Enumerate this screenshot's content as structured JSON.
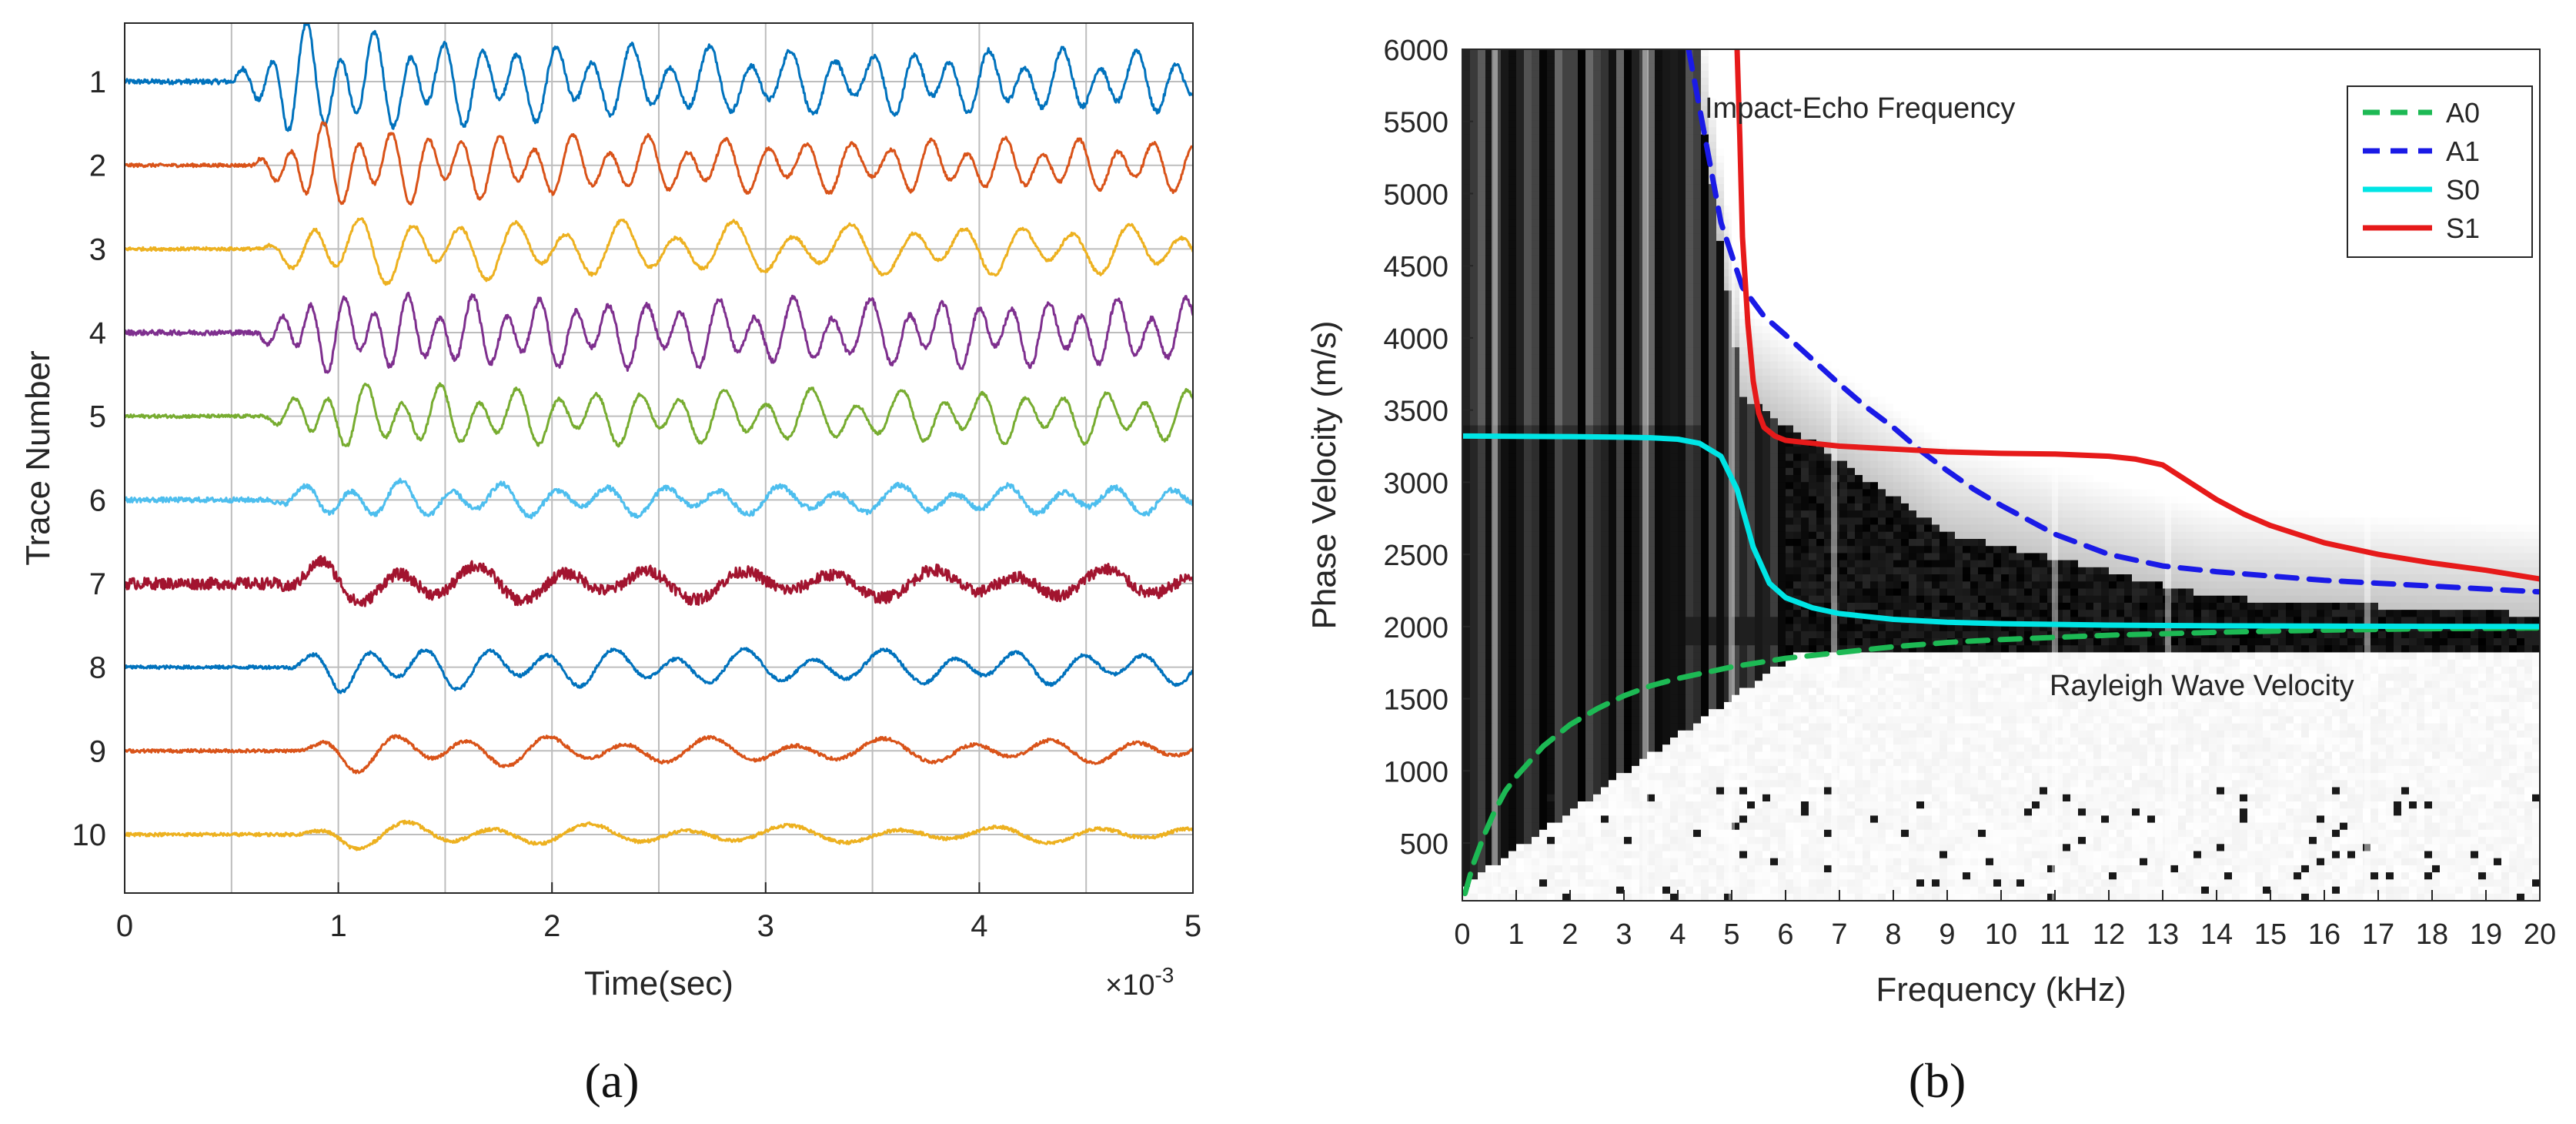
{
  "figure": {
    "panel_a_caption": "(a)",
    "panel_b_caption": "(b)"
  },
  "colors": {
    "trace_colors": [
      "#0072BD",
      "#D95319",
      "#EDB120",
      "#7E2F8E",
      "#77AC30",
      "#4DBEEE",
      "#A2142F",
      "#0072BD",
      "#D95319",
      "#EDB120"
    ],
    "A0": "#1db954",
    "A1": "#1a1ae6",
    "S0": "#00e5e5",
    "S1": "#e61a1a"
  },
  "chart_data": [
    {
      "type": "line",
      "title": "",
      "xlabel": "Time(sec)",
      "ylabel": "Trace Number",
      "x_exponent_label": "×10",
      "x_exponent_power": "-3",
      "xlim": [
        0,
        5
      ],
      "ylim": [
        10.7,
        0.3
      ],
      "xticks": [
        0,
        1,
        2,
        3,
        4,
        5
      ],
      "xtick_labels": [
        "0",
        "1",
        "2",
        "3",
        "4",
        "5"
      ],
      "yticks": [
        1,
        2,
        3,
        4,
        5,
        6,
        7,
        8,
        9,
        10
      ],
      "ytick_labels": [
        "1",
        "2",
        "3",
        "4",
        "5",
        "6",
        "7",
        "8",
        "9",
        "10"
      ],
      "grid": true,
      "vertical_gridlines": [
        0.5,
        1.0,
        1.5,
        2.0,
        2.5,
        3.0,
        3.5,
        4.0,
        4.5
      ],
      "series": [
        {
          "name": "Trace 1",
          "baseline": 1,
          "onset": 0.5,
          "amp": 0.75,
          "freq": 6.5,
          "noise": 0.03,
          "decay": 0.45
        },
        {
          "name": "Trace 2",
          "baseline": 2,
          "onset": 0.6,
          "amp": 0.55,
          "freq": 6.5,
          "noise": 0.02,
          "decay": 0.5
        },
        {
          "name": "Trace 3",
          "baseline": 3,
          "onset": 0.65,
          "amp": 0.45,
          "freq": 4.5,
          "noise": 0.02,
          "decay": 0.6
        },
        {
          "name": "Trace 4",
          "baseline": 4,
          "onset": 0.6,
          "amp": 0.45,
          "freq": 7.0,
          "noise": 0.03,
          "decay": 0.8
        },
        {
          "name": "Trace 5",
          "baseline": 5,
          "onset": 0.65,
          "amp": 0.4,
          "freq": 6.0,
          "noise": 0.02,
          "decay": 0.7
        },
        {
          "name": "Trace 6",
          "baseline": 6,
          "onset": 0.68,
          "amp": 0.25,
          "freq": 4.5,
          "noise": 0.03,
          "decay": 0.6
        },
        {
          "name": "Trace 7",
          "baseline": 7,
          "onset": 0.7,
          "amp": 0.3,
          "freq": 2.8,
          "noise": 0.07,
          "decay": 0.5
        },
        {
          "name": "Trace 8",
          "baseline": 8,
          "onset": 0.75,
          "amp": 0.3,
          "freq": 3.8,
          "noise": 0.02,
          "decay": 0.6
        },
        {
          "name": "Trace 9",
          "baseline": 9,
          "onset": 0.8,
          "amp": 0.25,
          "freq": 3.0,
          "noise": 0.02,
          "decay": 0.5
        },
        {
          "name": "Trace 10",
          "baseline": 10,
          "onset": 0.8,
          "amp": 0.18,
          "freq": 2.5,
          "noise": 0.02,
          "decay": 0.5
        }
      ]
    },
    {
      "type": "heatmap",
      "title": "",
      "xlabel": "Frequency (kHz)",
      "ylabel": "Phase Velocity (m/s)",
      "xlim": [
        0,
        20
      ],
      "ylim": [
        100,
        6000
      ],
      "xticks": [
        0,
        1,
        2,
        3,
        4,
        5,
        6,
        7,
        8,
        9,
        10,
        11,
        12,
        13,
        14,
        15,
        16,
        17,
        18,
        19,
        20
      ],
      "yticks": [
        500,
        1000,
        1500,
        2000,
        2500,
        3000,
        3500,
        4000,
        4500,
        5000,
        5500,
        6000
      ],
      "ytick_labels": [
        "500",
        "1000",
        "1500",
        "2000",
        "2500",
        "3000",
        "3500",
        "4000",
        "4500",
        "5000",
        "5500",
        "6000"
      ],
      "annotations": [
        {
          "text": "Impact-Echo Frequency",
          "x": 4.5,
          "y": 5600
        },
        {
          "text": "Rayleigh Wave Velocity",
          "x": 10.9,
          "y": 1600
        }
      ],
      "legend": {
        "position": "top-right",
        "entries": [
          "A0",
          "A1",
          "S0",
          "S1"
        ]
      },
      "series": [
        {
          "name": "A0",
          "style": "dashed",
          "x": [
            0.05,
            0.2,
            0.4,
            0.6,
            0.8,
            1,
            1.5,
            2,
            2.5,
            3,
            3.5,
            4,
            5,
            6,
            7,
            8,
            9,
            10,
            12,
            14,
            16,
            18,
            20
          ],
          "y": [
            150,
            350,
            550,
            720,
            860,
            960,
            1170,
            1320,
            1430,
            1520,
            1590,
            1640,
            1720,
            1780,
            1820,
            1860,
            1890,
            1910,
            1940,
            1960,
            1975,
            1985,
            1990
          ]
        },
        {
          "name": "A1",
          "style": "dashed",
          "x": [
            4.2,
            4.5,
            4.8,
            5.2,
            5.6,
            6,
            6.5,
            7,
            7.5,
            8,
            8.5,
            9,
            9.5,
            10,
            11,
            12,
            13,
            14,
            15,
            16,
            17,
            18,
            19,
            20
          ],
          "y": [
            6000,
            5400,
            4800,
            4350,
            4150,
            4020,
            3850,
            3680,
            3520,
            3380,
            3220,
            3080,
            2950,
            2840,
            2640,
            2500,
            2420,
            2380,
            2350,
            2320,
            2300,
            2280,
            2260,
            2240
          ]
        },
        {
          "name": "S0",
          "style": "solid",
          "x": [
            0,
            1,
            2,
            3,
            3.5,
            4,
            4.4,
            4.8,
            5.1,
            5.4,
            5.7,
            6,
            6.5,
            7,
            8,
            9,
            10,
            12,
            14,
            16,
            18,
            20
          ],
          "y": [
            3320,
            3318,
            3316,
            3312,
            3308,
            3298,
            3270,
            3180,
            2950,
            2550,
            2300,
            2200,
            2130,
            2090,
            2050,
            2030,
            2020,
            2010,
            2005,
            2003,
            2001,
            2000
          ]
        },
        {
          "name": "S1",
          "style": "solid",
          "x": [
            5.1,
            5.15,
            5.2,
            5.3,
            5.4,
            5.5,
            5.6,
            5.8,
            6,
            6.5,
            7,
            8,
            9,
            10,
            11,
            12,
            12.5,
            13,
            13.5,
            14,
            14.5,
            15,
            15.5,
            16,
            17,
            18,
            19,
            20
          ],
          "y": [
            6000,
            5400,
            4700,
            4100,
            3700,
            3480,
            3380,
            3320,
            3290,
            3270,
            3250,
            3230,
            3210,
            3200,
            3195,
            3180,
            3160,
            3120,
            3000,
            2880,
            2780,
            2700,
            2640,
            2580,
            2500,
            2440,
            2390,
            2330
          ]
        }
      ]
    }
  ]
}
